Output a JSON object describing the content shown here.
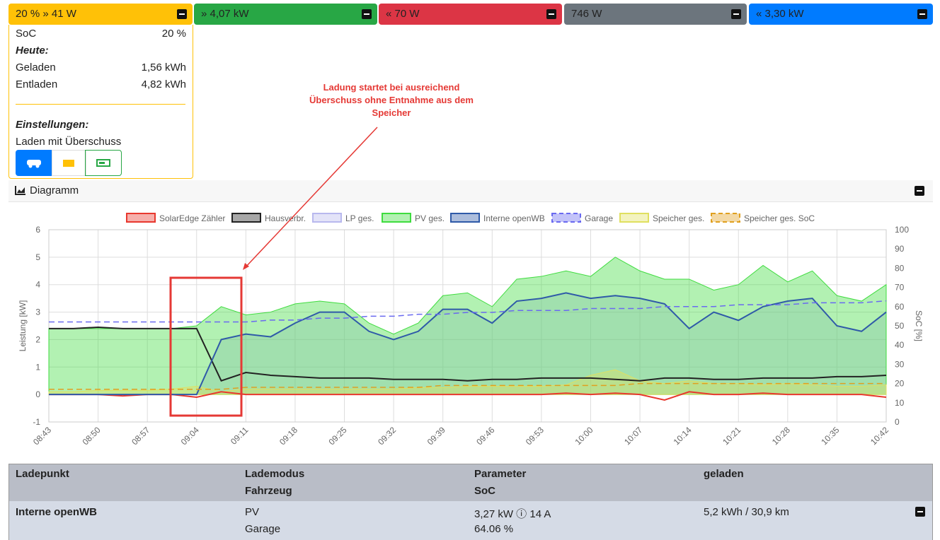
{
  "header": {
    "cards": [
      "20 % » 41 W",
      "» 4,07 kW",
      "« 70 W",
      "746 W",
      "« 3,30 kW"
    ]
  },
  "battery": {
    "soc_label": "SoC",
    "soc": "20 %",
    "today": "Heute:",
    "charged_label": "Geladen",
    "charged": "1,56 kWh",
    "discharged_label": "Entladen",
    "discharged": "4,82 kWh",
    "settings": "Einstellungen:",
    "mode": "Laden mit Überschuss"
  },
  "annotation": {
    "lines": [
      "Ladung startet bei ausreichend",
      "Überschuss ohne Entnahme aus dem",
      "Speicher"
    ]
  },
  "diagram": {
    "title": "Diagramm"
  },
  "chart_data": {
    "type": "line",
    "ylabel": "Leistung [kW]",
    "y2label": "SoC [%]",
    "grid": true,
    "ylim": [
      -1,
      6
    ],
    "yticks": [
      -1,
      0,
      1,
      2,
      3,
      4,
      5,
      6
    ],
    "y2lim": [
      0,
      100
    ],
    "y2ticks": [
      0,
      10,
      20,
      30,
      40,
      50,
      60,
      70,
      80,
      90,
      100
    ],
    "x": [
      "08:43",
      null,
      "08:50",
      null,
      "08:57",
      null,
      "09:04",
      null,
      "09:11",
      null,
      "09:18",
      null,
      "09:25",
      null,
      "09:32",
      null,
      "09:39",
      null,
      "09:46",
      null,
      "09:53",
      null,
      "10:00",
      null,
      "10:07",
      null,
      "10:14",
      null,
      "10:21",
      null,
      "10:28",
      null,
      "10:35",
      null,
      "10:42"
    ],
    "series": [
      {
        "name": "SolarEdge Zähler",
        "color": "#e8382e",
        "style": "line",
        "values": [
          0,
          0,
          0,
          -0.05,
          0,
          0,
          -0.1,
          0.1,
          0,
          0,
          0,
          0,
          0,
          0,
          0,
          0,
          0,
          0,
          0,
          0,
          0,
          0.05,
          0,
          0.05,
          0,
          -0.2,
          0.1,
          0,
          0,
          0.05,
          0,
          0,
          0,
          0,
          -0.1
        ]
      },
      {
        "name": "Hausverbr.",
        "color": "#222222",
        "style": "line",
        "values": [
          2.4,
          2.4,
          2.45,
          2.4,
          2.4,
          2.4,
          2.4,
          0.5,
          0.8,
          0.7,
          0.65,
          0.6,
          0.6,
          0.6,
          0.55,
          0.55,
          0.55,
          0.5,
          0.55,
          0.55,
          0.6,
          0.6,
          0.6,
          0.55,
          0.5,
          0.6,
          0.6,
          0.55,
          0.55,
          0.6,
          0.6,
          0.6,
          0.65,
          0.65,
          0.7
        ]
      },
      {
        "name": "LP ges.",
        "color": "#b8b8ee",
        "style": "area",
        "values": [
          0,
          0,
          0,
          0,
          0,
          0,
          0,
          2.0,
          2.2,
          2.1,
          2.6,
          3.0,
          3.0,
          2.3,
          2.0,
          2.3,
          3.1,
          3.1,
          2.6,
          3.4,
          3.5,
          3.7,
          3.5,
          3.6,
          3.5,
          3.3,
          2.4,
          3.0,
          2.7,
          3.2,
          3.4,
          3.5,
          2.5,
          2.3,
          3.0
        ]
      },
      {
        "name": "PV ges.",
        "color": "#3fdc3f",
        "style": "area",
        "values": [
          2.4,
          2.4,
          2.4,
          2.4,
          2.4,
          2.4,
          2.5,
          3.2,
          2.9,
          3.0,
          3.3,
          3.4,
          3.3,
          2.6,
          2.2,
          2.6,
          3.6,
          3.7,
          3.2,
          4.2,
          4.3,
          4.5,
          4.3,
          5.0,
          4.5,
          4.2,
          4.2,
          3.8,
          4.0,
          4.7,
          4.1,
          4.5,
          3.6,
          3.4,
          4.0
        ]
      },
      {
        "name": "Interne openWB",
        "color": "#2f5aa8",
        "style": "line",
        "values": [
          0,
          0,
          0,
          0,
          0,
          0,
          0,
          2.0,
          2.2,
          2.1,
          2.6,
          3.0,
          3.0,
          2.3,
          2.0,
          2.3,
          3.1,
          3.1,
          2.6,
          3.4,
          3.5,
          3.7,
          3.5,
          3.6,
          3.5,
          3.3,
          2.4,
          3.0,
          2.7,
          3.2,
          3.4,
          3.5,
          2.5,
          2.3,
          3.0
        ]
      },
      {
        "name": "Garage",
        "color": "#6a6af0",
        "style": "dash",
        "axis": "y2",
        "values": [
          52,
          52,
          52,
          52,
          52,
          52,
          52,
          52,
          52,
          53,
          53,
          54,
          54,
          55,
          55,
          56,
          56,
          57,
          57,
          58,
          58,
          58,
          59,
          59,
          59,
          60,
          60,
          60,
          61,
          61,
          61,
          62,
          62,
          62,
          63
        ]
      },
      {
        "name": "Speicher ges.",
        "color": "#e0e060",
        "style": "area",
        "values": [
          0.1,
          0.1,
          0.15,
          0.15,
          0.15,
          0.2,
          0.3,
          0.1,
          0.2,
          0.2,
          0.2,
          0.2,
          0.2,
          0.2,
          0.2,
          0.25,
          0.25,
          0.3,
          0.3,
          0.3,
          0.3,
          0.35,
          0.7,
          0.9,
          0.5,
          0.4,
          0.5,
          0.4,
          0.4,
          0.35,
          0.4,
          0.35,
          0.3,
          0.3,
          0.35
        ]
      },
      {
        "name": "Speicher ges. SoC",
        "color": "#e0a020",
        "style": "dash",
        "axis": "y2",
        "values": [
          17,
          17,
          17,
          17,
          17,
          17,
          17,
          17,
          18,
          18,
          18,
          18,
          18,
          18,
          18,
          18,
          19,
          19,
          19,
          19,
          19,
          19,
          19,
          19,
          20,
          20,
          20,
          20,
          20,
          20,
          20,
          20,
          20,
          20,
          20
        ]
      }
    ]
  },
  "table": {
    "head": [
      "Ladepunkt",
      "Lademodus",
      "Fahrzeug",
      "Parameter",
      "SoC",
      "geladen"
    ],
    "row": [
      "Interne openWB",
      "PV",
      "Garage",
      "3,27 kW ⓘ 14 A",
      "64.06 %",
      "5,2 kWh / 30,9 km"
    ]
  }
}
